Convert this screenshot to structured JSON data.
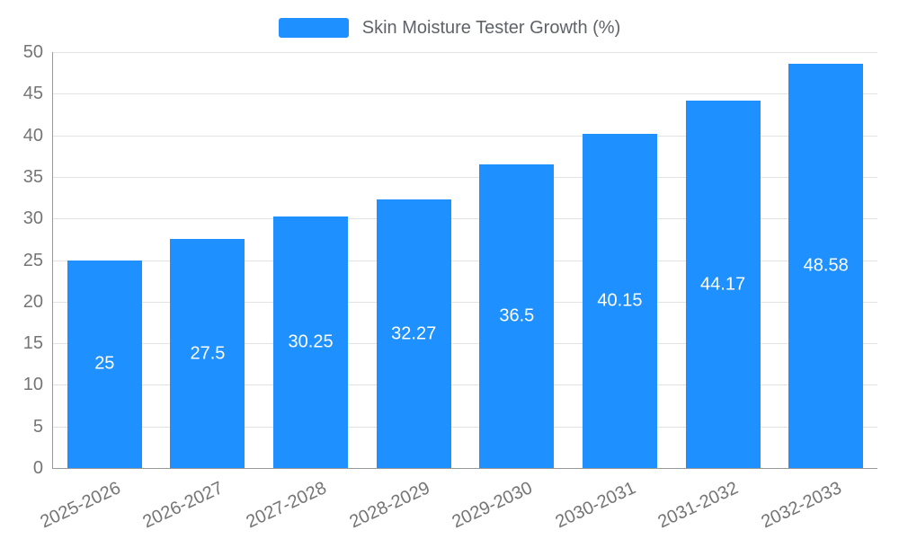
{
  "chart_data": {
    "type": "bar",
    "title": "Skin Moisture Tester Growth (%)",
    "categories": [
      "2025-2026",
      "2026-2027",
      "2027-2028",
      "2028-2029",
      "2029-2030",
      "2030-2031",
      "2031-2032",
      "2032-2033"
    ],
    "values": [
      25,
      27.5,
      30.25,
      32.27,
      36.5,
      40.15,
      44.17,
      48.58
    ],
    "value_labels": [
      "25",
      "27.5",
      "30.25",
      "32.27",
      "36.5",
      "40.15",
      "44.17",
      "48.58"
    ],
    "xlabel": "",
    "ylabel": "",
    "ylim": [
      0,
      50
    ],
    "ytick_step": 5,
    "ytick_labels": [
      "0",
      "5",
      "10",
      "15",
      "20",
      "25",
      "30",
      "35",
      "40",
      "45",
      "50"
    ],
    "grid": true,
    "legend_position": "top-center",
    "x_label_rotation": -25,
    "colors": {
      "bar": "#1e90ff",
      "value_label": "#ffffff",
      "axis_text": "#757575",
      "title_text": "#5f6368",
      "gridline": "#e3e3e3",
      "axis_line": "#999999",
      "background": "#ffffff"
    }
  }
}
